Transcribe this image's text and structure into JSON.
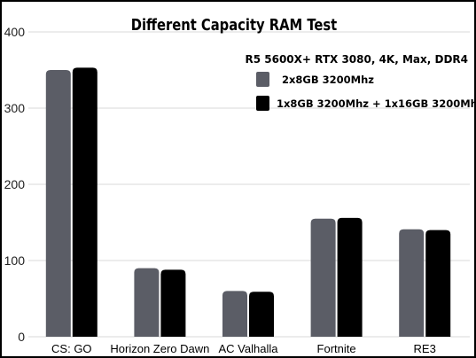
{
  "chart_data": {
    "type": "bar",
    "title": "Different Capacity RAM Test",
    "subtitle": "R5 5600X+ RTX 3080, 4K, Max, DDR4",
    "xlabel": "",
    "ylabel": "",
    "ylim": [
      0,
      400
    ],
    "yticks": [
      0,
      100,
      200,
      300,
      400
    ],
    "grid": true,
    "legend_position": "top-right",
    "categories": [
      "CS: GO",
      "Horizon Zero Dawn",
      "AC Valhalla",
      "Fortnite",
      "RE3"
    ],
    "series": [
      {
        "name": "2x8GB 3200Mhz",
        "color": "#5b5d66",
        "values": [
          350,
          90,
          60,
          155,
          141
        ]
      },
      {
        "name": "1x8GB 3200Mhz + 1x16GB 3200Mhz",
        "color": "#000000",
        "values": [
          353,
          88,
          59,
          156,
          140
        ]
      }
    ]
  }
}
